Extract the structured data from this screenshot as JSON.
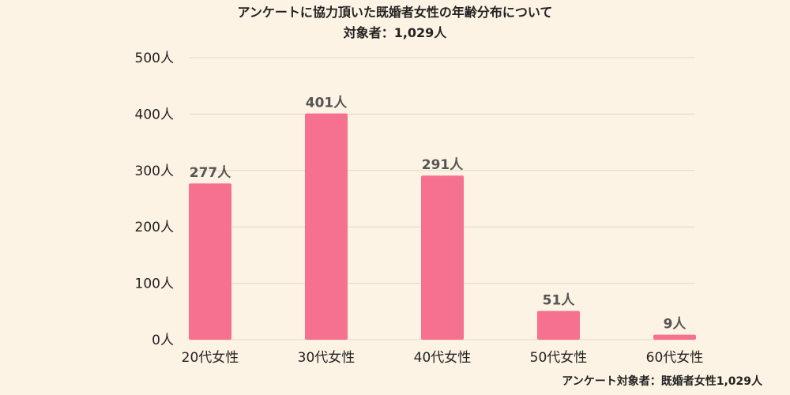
{
  "chart_data": {
    "type": "bar",
    "title": "アンケートに協力頂いた既婚者女性の年齢分布について",
    "subtitle": "対象者：1,029人",
    "categories": [
      "20代女性",
      "30代女性",
      "40代女性",
      "50代女性",
      "60代女性"
    ],
    "values": [
      277,
      401,
      291,
      51,
      9
    ],
    "data_labels": [
      "277人",
      "401人",
      "291人",
      "51人",
      "9人"
    ],
    "yticks": [
      {
        "value": 0,
        "label": "0人"
      },
      {
        "value": 100,
        "label": "100人"
      },
      {
        "value": 200,
        "label": "200人"
      },
      {
        "value": 300,
        "label": "300人"
      },
      {
        "value": 400,
        "label": "400人"
      },
      {
        "value": 500,
        "label": "500人"
      }
    ],
    "ylim": [
      0,
      500
    ],
    "grid": true,
    "bar_color": "#f5718f",
    "background_color": "#fdf3e4"
  },
  "footnote": "アンケート対象者：既婚者女性1,029人"
}
